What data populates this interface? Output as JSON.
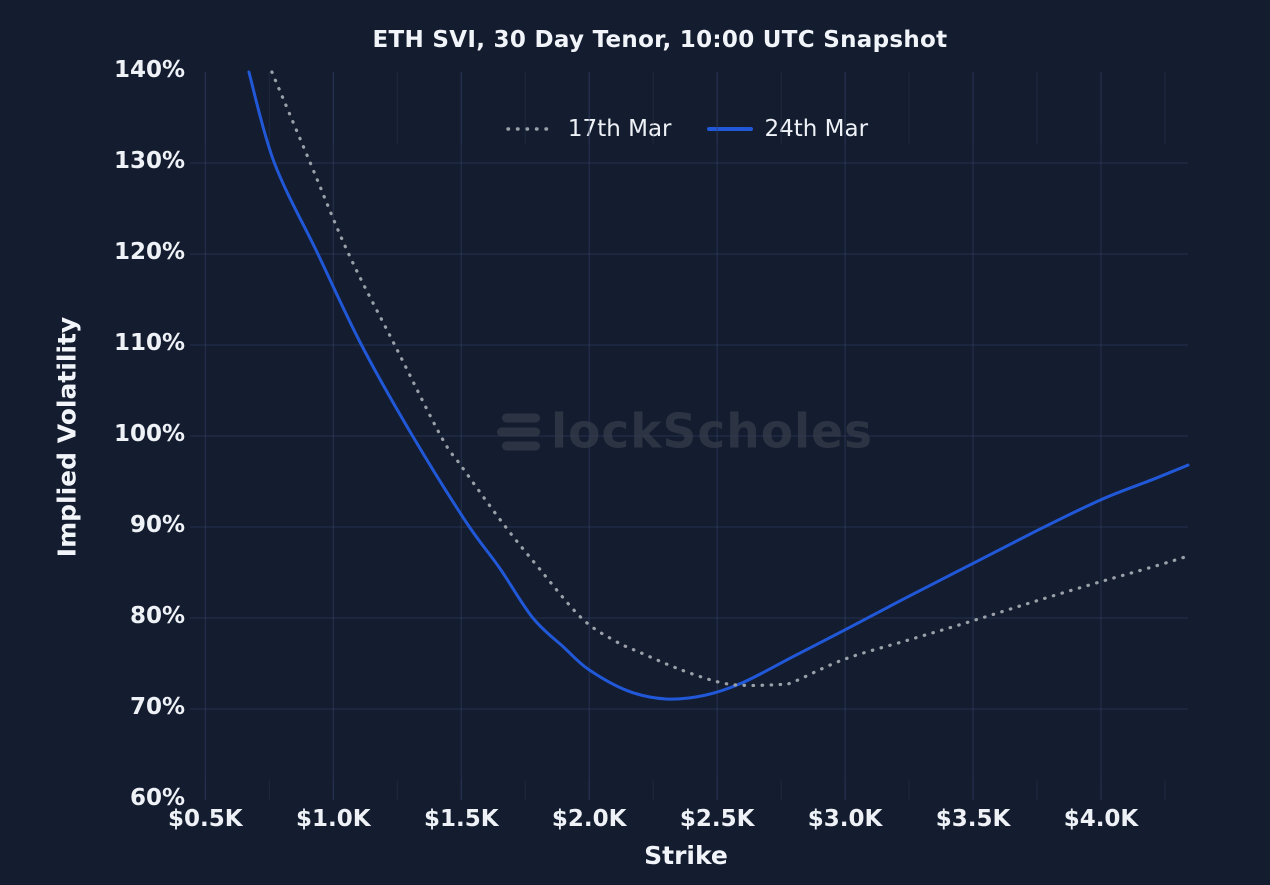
{
  "chart": {
    "title": "ETH SVI, 30 Day Tenor, 10:00 UTC Snapshot",
    "watermark": "BlockScholes"
  },
  "colors": {
    "background": "#141c2f",
    "gridline": "#37496f",
    "minor_tick": "#2a3a58",
    "text": "#eef2f7",
    "watermark": "#333b4b",
    "series_17th_mar": "#9aa0a8",
    "series_24th_mar": "#2158d8"
  },
  "chart_data": {
    "type": "line",
    "title": "ETH SVI, 30 Day Tenor, 10:00 UTC Snapshot",
    "xlabel": "Strike",
    "ylabel": "Implied Volatility",
    "x_unit": "USD thousands (strike price)",
    "y_unit": "percent implied volatility",
    "xlim": [
      0.44,
      4.34
    ],
    "ylim": [
      60,
      140
    ],
    "grid": true,
    "legend_position": "top-center",
    "x_ticks": [
      0.5,
      1.0,
      1.5,
      2.0,
      2.5,
      3.0,
      3.5,
      4.0
    ],
    "x_tick_labels": [
      "$0.5K",
      "$1.0K",
      "$1.5K",
      "$2.0K",
      "$2.5K",
      "$3.0K",
      "$3.5K",
      "$4.0K"
    ],
    "y_ticks": [
      60,
      70,
      80,
      90,
      100,
      110,
      120,
      130,
      140
    ],
    "y_tick_labels": [
      "60%",
      "70%",
      "80%",
      "90%",
      "100%",
      "110%",
      "120%",
      "130%",
      "140%"
    ],
    "series": [
      {
        "name": "17th Mar",
        "style": "dotted",
        "color": "#9aa0a8",
        "points": [
          [
            0.76,
            140
          ],
          [
            0.91,
            130
          ],
          [
            1.06,
            120
          ],
          [
            1.24,
            110
          ],
          [
            1.42,
            100
          ],
          [
            1.5,
            96.7
          ],
          [
            1.66,
            90.5
          ],
          [
            1.8,
            85.6
          ],
          [
            1.97,
            80.0
          ],
          [
            2.1,
            77.5
          ],
          [
            2.2,
            76.2
          ],
          [
            2.35,
            74.4
          ],
          [
            2.5,
            73.0
          ],
          [
            2.6,
            72.6
          ],
          [
            2.75,
            72.7
          ],
          [
            2.8,
            73.0
          ],
          [
            3.0,
            75.5
          ],
          [
            3.25,
            77.6
          ],
          [
            3.5,
            79.7
          ],
          [
            3.75,
            81.9
          ],
          [
            4.0,
            84.0
          ],
          [
            4.2,
            85.6
          ],
          [
            4.34,
            86.8
          ]
        ]
      },
      {
        "name": "24th Mar",
        "style": "solid",
        "color": "#2158d8",
        "points": [
          [
            0.67,
            140
          ],
          [
            0.77,
            130
          ],
          [
            0.94,
            120
          ],
          [
            1.11,
            110
          ],
          [
            1.31,
            100
          ],
          [
            1.52,
            90.5
          ],
          [
            1.65,
            85.5
          ],
          [
            1.78,
            80.0
          ],
          [
            1.9,
            76.8
          ],
          [
            2.0,
            74.3
          ],
          [
            2.15,
            72.0
          ],
          [
            2.3,
            71.1
          ],
          [
            2.45,
            71.5
          ],
          [
            2.6,
            72.9
          ],
          [
            2.8,
            75.8
          ],
          [
            3.0,
            78.7
          ],
          [
            3.25,
            82.4
          ],
          [
            3.5,
            86.0
          ],
          [
            3.75,
            89.6
          ],
          [
            4.0,
            93.0
          ],
          [
            4.2,
            95.2
          ],
          [
            4.34,
            96.8
          ]
        ]
      }
    ]
  }
}
